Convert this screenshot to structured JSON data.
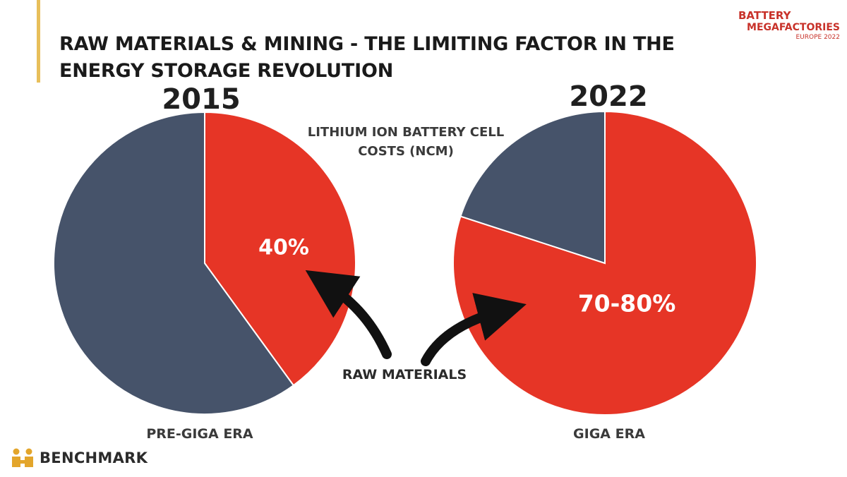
{
  "title": "RAW MATERIALS & MINING - THE LIMITING FACTOR IN THE ENERGY STORAGE REVOLUTION",
  "event_logo": {
    "line1": "BATTERY",
    "line2": "MEGAFACTORIES",
    "line3": "EUROPE 2022"
  },
  "subtitle": "LITHIUM ION BATTERY CELL COSTS (NCM)",
  "annotation": "RAW MATERIALS",
  "brand": "BENCHMARK",
  "colors": {
    "raw_materials": "#e63526",
    "other": "#46536a",
    "accent_bar": "#e8bf5a",
    "brand_gold": "#e3a52b"
  },
  "chart_data": [
    {
      "type": "pie",
      "title": "2015",
      "caption": "PRE-GIGA ERA",
      "slices": [
        {
          "value": 40,
          "label": "40%",
          "color": "#e63526"
        },
        {
          "value": 60,
          "label": "",
          "color": "#46536a"
        }
      ]
    },
    {
      "type": "pie",
      "title": "2022",
      "caption": "GIGA ERA",
      "slices": [
        {
          "value": 80,
          "label": "70-80%",
          "color": "#e63526"
        },
        {
          "value": 20,
          "label": "",
          "color": "#46536a"
        }
      ]
    }
  ]
}
